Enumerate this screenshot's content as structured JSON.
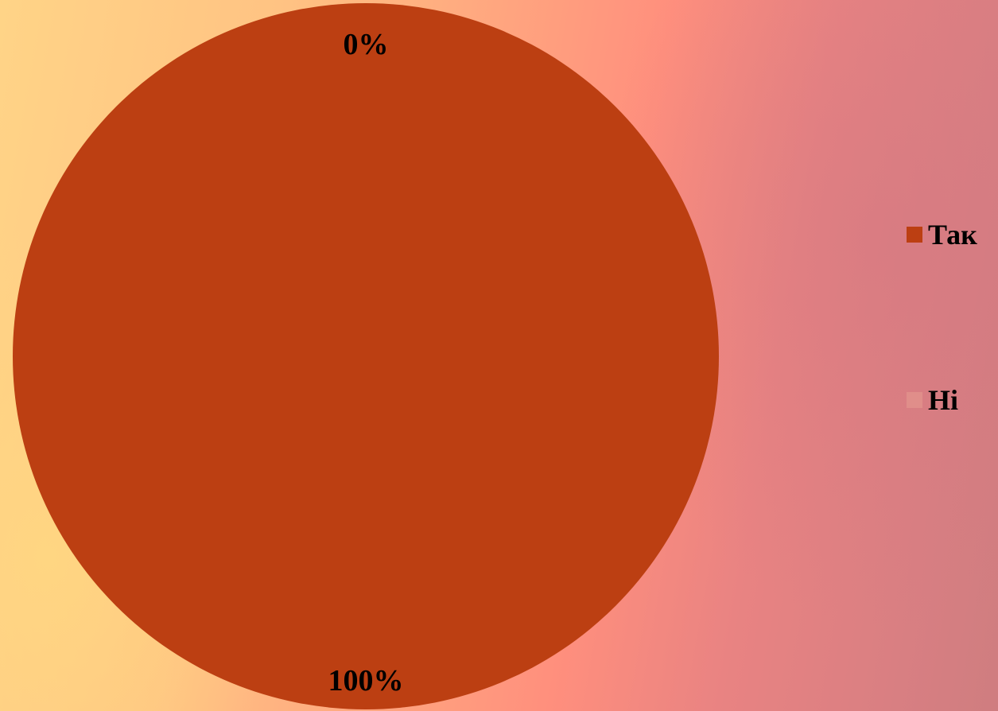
{
  "chart_data": {
    "type": "pie",
    "categories": [
      "Так",
      "Ні"
    ],
    "values": [
      100,
      0
    ],
    "data_labels": [
      "100%",
      "0%"
    ],
    "colors": [
      "#bc3f12",
      "#e08e8a"
    ],
    "legend": {
      "placement": "right",
      "entries": [
        "Так",
        "Ні"
      ]
    }
  }
}
